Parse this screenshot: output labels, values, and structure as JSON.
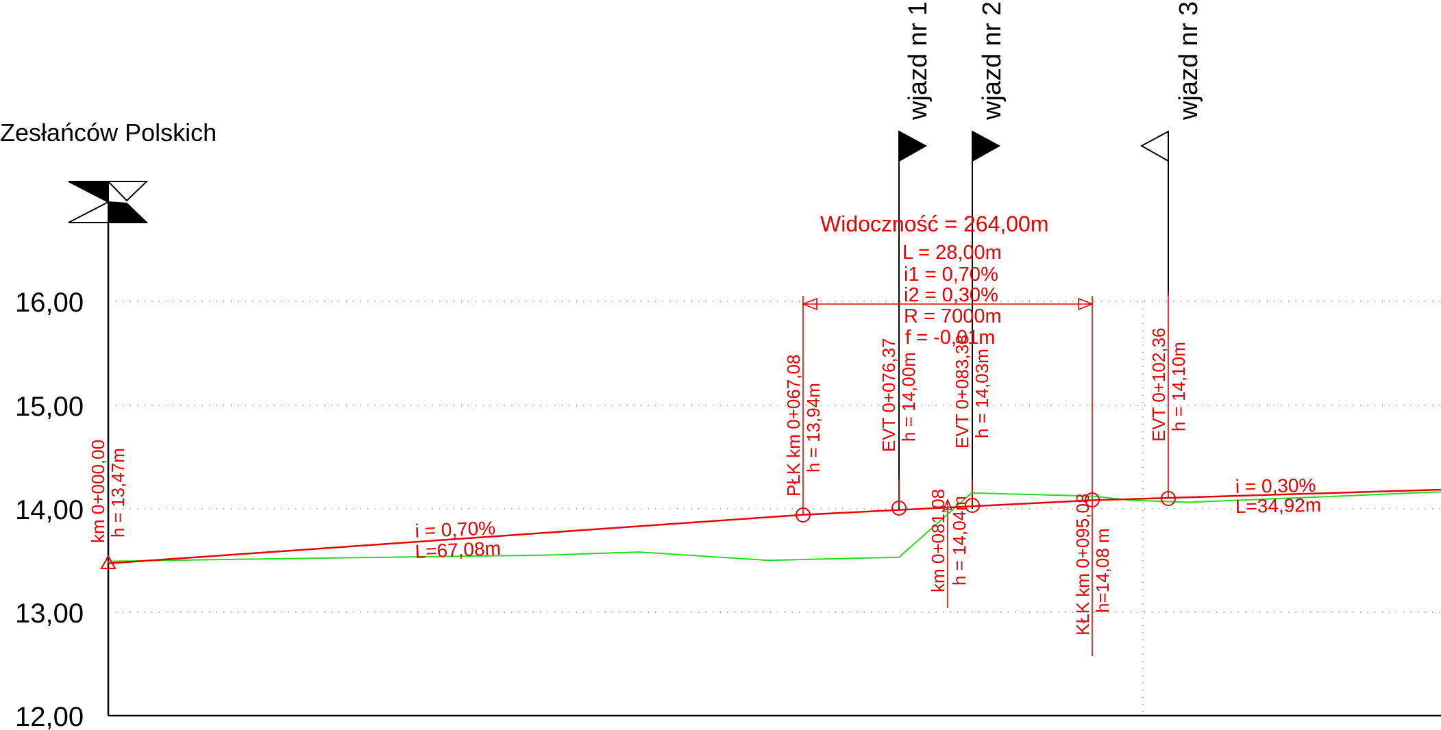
{
  "colors": {
    "profile_line": "#e60000",
    "terrain_line": "#22dd22",
    "axis": "#000000",
    "grid": "#999999",
    "background": "#ffffff"
  },
  "chart_data": {
    "type": "line",
    "title": "",
    "xlabel": "",
    "ylabel": "",
    "ylim": [
      12,
      16
    ],
    "y_tick_labels": [
      "16,00",
      "15,00",
      "14,00",
      "13,00",
      "12,00"
    ],
    "y_tick_values": [
      16,
      15,
      14,
      13,
      12
    ],
    "grid": true,
    "series": [
      {
        "role": "design_profile",
        "x": [
          0.0,
          67.08,
          95.08,
          138
        ],
        "y": [
          13.47,
          13.94,
          14.08,
          14.21
        ]
      },
      {
        "role": "terrain",
        "x": [
          0.0,
          12.37,
          42.37,
          51.25,
          63.75,
          76.37,
          83.38,
          95.08,
          98.73,
          104.36,
          138
        ],
        "y": [
          13.49,
          13.51,
          13.55,
          13.58,
          13.5,
          13.53,
          14.15,
          14.12,
          14.08,
          14.06,
          14.2
        ]
      }
    ]
  },
  "road_name": "Zesłańców Polskich",
  "entrances": [
    {
      "label": "wjazd nr 1",
      "flag": "filled"
    },
    {
      "label": "wjazd nr 2",
      "flag": "filled"
    },
    {
      "label": "wjazd nr 3",
      "flag": "outline"
    }
  ],
  "curve": {
    "visibility": "Widoczność = 264,00m",
    "length": "L = 28,00m",
    "i1": "i1 = 0,70%",
    "i2": "i2 = 0,30%",
    "radius": "R = 7000m",
    "f": "f = -0,01m"
  },
  "stations": [
    {
      "km": "km 0+000,00",
      "h": "h = 13,47m"
    },
    {
      "km": "PŁK km 0+067,08",
      "h": "h = 13,94m"
    },
    {
      "km": "EVT 0+076,37",
      "h": "h = 14,00m"
    },
    {
      "km": "EVT 0+083,38",
      "h": "h = 14,03m"
    },
    {
      "km": "km 0+081,08",
      "h": "h = 14,04m"
    },
    {
      "km": "KŁK km 0+095,08",
      "h": "h=14,08 m"
    },
    {
      "km": "EVT 0+102,36",
      "h": "h = 14,10m"
    }
  ],
  "grades": [
    {
      "i": "i = 0,70%",
      "L": "L=67,08m"
    },
    {
      "i": "i = 0,30%",
      "L": "L=34,92m"
    }
  ]
}
